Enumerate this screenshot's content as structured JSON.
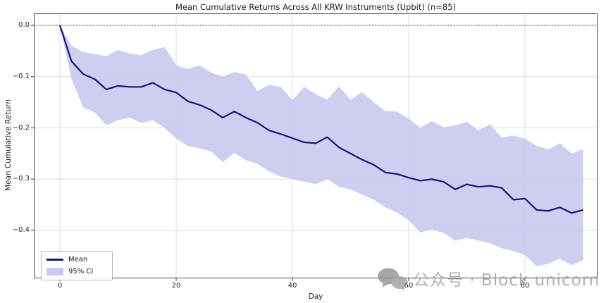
{
  "title": "Mean Cumulative Returns Across All KRW Instruments (Upbit) (n=85)",
  "axes": {
    "xlabel": "Day",
    "ylabel": "Mean Cumulative Return"
  },
  "legend": {
    "mean_label": "Mean",
    "ci_label": "95% CI"
  },
  "watermark": {
    "icon": "wechat-logo",
    "text": "公众号 · Block unicorn"
  },
  "colors": {
    "mean_line": "#14147a",
    "ci_fill": "#c9c9f0",
    "grid": "#dcdcdc",
    "zero_line": "#333333",
    "spine": "#4a4a4a",
    "tick": "#333333"
  },
  "chart_data": {
    "type": "line",
    "title": "Mean Cumulative Returns Across All KRW Instruments (Upbit) (n=85)",
    "xlabel": "Day",
    "ylabel": "Mean Cumulative Return",
    "xlim": [
      -4.5,
      92.5
    ],
    "ylim": [
      -0.493,
      0.023
    ],
    "grid": true,
    "zero_reference_line": 0.0,
    "legend_position": "lower left",
    "x_ticks": {
      "values": [
        0,
        20,
        40,
        60,
        80
      ],
      "labels": [
        "0",
        "20",
        "40",
        "60",
        "80"
      ]
    },
    "y_ticks": {
      "values": [
        0.0,
        -0.1,
        -0.2,
        -0.3,
        -0.4
      ],
      "labels": [
        "0.0",
        "−0.1",
        "−0.2",
        "−0.3",
        "−0.4"
      ]
    },
    "x": [
      0,
      2,
      4,
      6,
      8,
      10,
      12,
      14,
      16,
      18,
      20,
      22,
      24,
      26,
      28,
      30,
      32,
      34,
      36,
      38,
      40,
      42,
      44,
      46,
      48,
      50,
      52,
      54,
      56,
      58,
      60,
      62,
      64,
      66,
      68,
      70,
      72,
      74,
      76,
      78,
      80,
      82,
      84,
      86,
      88,
      90
    ],
    "series": [
      {
        "name": "Mean",
        "values": [
          0.0,
          -0.07,
          -0.095,
          -0.105,
          -0.125,
          -0.118,
          -0.12,
          -0.12,
          -0.112,
          -0.125,
          -0.131,
          -0.148,
          -0.155,
          -0.165,
          -0.18,
          -0.168,
          -0.18,
          -0.19,
          -0.205,
          -0.212,
          -0.22,
          -0.228,
          -0.23,
          -0.218,
          -0.238,
          -0.25,
          -0.262,
          -0.272,
          -0.287,
          -0.29,
          -0.297,
          -0.303,
          -0.3,
          -0.305,
          -0.32,
          -0.31,
          -0.315,
          -0.313,
          -0.317,
          -0.34,
          -0.338,
          -0.36,
          -0.362,
          -0.355,
          -0.366,
          -0.36
        ]
      },
      {
        "name": "95% CI upper",
        "values": [
          0.0,
          -0.04,
          -0.052,
          -0.056,
          -0.06,
          -0.048,
          -0.055,
          -0.058,
          -0.048,
          -0.042,
          -0.078,
          -0.085,
          -0.078,
          -0.092,
          -0.1,
          -0.091,
          -0.096,
          -0.128,
          -0.116,
          -0.12,
          -0.146,
          -0.12,
          -0.134,
          -0.145,
          -0.119,
          -0.145,
          -0.13,
          -0.15,
          -0.167,
          -0.168,
          -0.182,
          -0.2,
          -0.187,
          -0.199,
          -0.195,
          -0.188,
          -0.205,
          -0.193,
          -0.219,
          -0.215,
          -0.221,
          -0.235,
          -0.242,
          -0.23,
          -0.25,
          -0.242
        ]
      },
      {
        "name": "95% CI lower",
        "values": [
          0.0,
          -0.105,
          -0.16,
          -0.17,
          -0.195,
          -0.185,
          -0.18,
          -0.19,
          -0.185,
          -0.2,
          -0.221,
          -0.235,
          -0.24,
          -0.246,
          -0.267,
          -0.249,
          -0.263,
          -0.27,
          -0.285,
          -0.295,
          -0.3,
          -0.305,
          -0.31,
          -0.3,
          -0.315,
          -0.32,
          -0.33,
          -0.34,
          -0.355,
          -0.365,
          -0.38,
          -0.404,
          -0.398,
          -0.405,
          -0.42,
          -0.415,
          -0.42,
          -0.425,
          -0.435,
          -0.44,
          -0.448,
          -0.47,
          -0.465,
          -0.455,
          -0.468,
          -0.458
        ]
      }
    ]
  }
}
